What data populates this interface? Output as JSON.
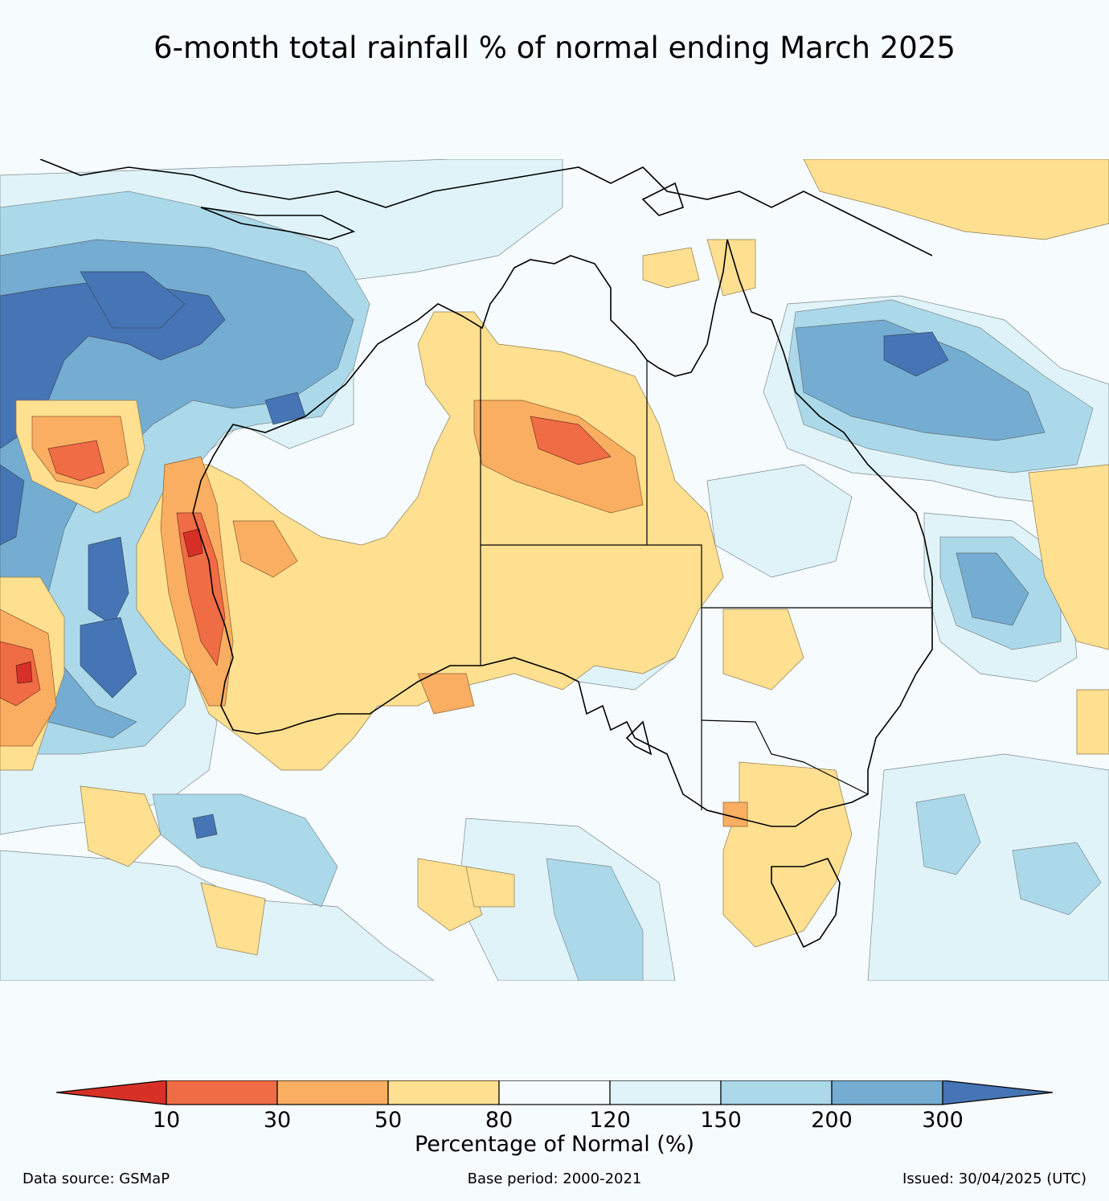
{
  "title": "6-month total rainfall % of normal ending March 2025",
  "legend": {
    "label": "Percentage of Normal (%)",
    "ticks": [
      "10",
      "30",
      "50",
      "80",
      "120",
      "150",
      "200",
      "300"
    ],
    "colors": {
      "below_10": "#d73027",
      "10_30": "#f06c45",
      "30_50": "#f9ae61",
      "50_80": "#fee090",
      "80_120": "#f6fbfd",
      "120_150": "#e0f3f8",
      "150_200": "#abd9e9",
      "200_300": "#74add1",
      "above_300": "#4575b4"
    }
  },
  "map": {
    "region": "Australia",
    "boundaries": [
      "coastline",
      "state-borders"
    ]
  },
  "footer": {
    "source": "Data source: GSMaP",
    "base_period": "Base period: 2000-2021",
    "issued": "Issued: 30/04/2025 (UTC)"
  }
}
